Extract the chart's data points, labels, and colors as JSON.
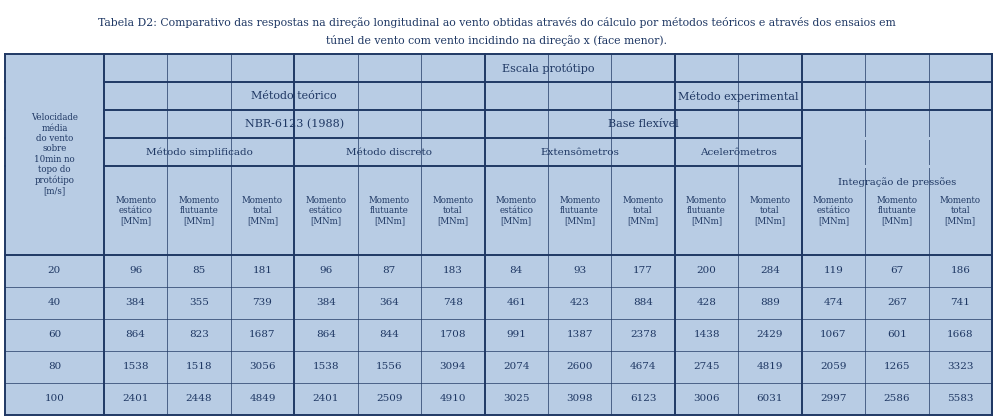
{
  "title_line1": "Tabela D2: Comparativo das respostas na direção longitudinal ao vento obtidas através do cálculo por métodos teóricos e através dos ensaios em",
  "title_line2": "túnel de vento com vento incidindo na direção x (face menor).",
  "bg_color": "#b8cce4",
  "line_color": "#1f3864",
  "text_color": "#1f3864",
  "row_data": [
    [
      "20",
      "96",
      "85",
      "181",
      "96",
      "87",
      "183",
      "84",
      "93",
      "177",
      "200",
      "284",
      "119",
      "67",
      "186"
    ],
    [
      "40",
      "384",
      "355",
      "739",
      "384",
      "364",
      "748",
      "461",
      "423",
      "884",
      "428",
      "889",
      "474",
      "267",
      "741"
    ],
    [
      "60",
      "864",
      "823",
      "1687",
      "864",
      "844",
      "1708",
      "991",
      "1387",
      "2378",
      "1438",
      "2429",
      "1067",
      "601",
      "1668"
    ],
    [
      "80",
      "1538",
      "1518",
      "3056",
      "1538",
      "1556",
      "3094",
      "2074",
      "2600",
      "4674",
      "2745",
      "4819",
      "2059",
      "1265",
      "3323"
    ],
    [
      "100",
      "2401",
      "2448",
      "4849",
      "2401",
      "2509",
      "4910",
      "3025",
      "3098",
      "6123",
      "3006",
      "6031",
      "2997",
      "2586",
      "5583"
    ]
  ],
  "col_types": [
    "estático",
    "flutuante",
    "total",
    "estático",
    "flutuante",
    "total",
    "estático",
    "flutuante",
    "total",
    "flutuante",
    "total",
    "estático",
    "flutuante",
    "total"
  ],
  "vel_label": "Velocidade\nmédia\ndo vento\nsobre\n10min no\ntopo do\nprotótipo\n[m/s]",
  "escala_label": "Escala protótipo",
  "metodo_teorico_label": "Método teórico",
  "metodo_exp_label": "Método experimental",
  "nbr_label": "NBR-6123 (1988)",
  "base_flex_label": "Base flexível",
  "integ_label": "Integração de pressões",
  "metodo_simpl_label": "Método simplificado",
  "metodo_disc_label": "Método discreto",
  "ext_label": "Extensômetros",
  "acel_label": "Acelerômetros",
  "momento_label": "Momento"
}
